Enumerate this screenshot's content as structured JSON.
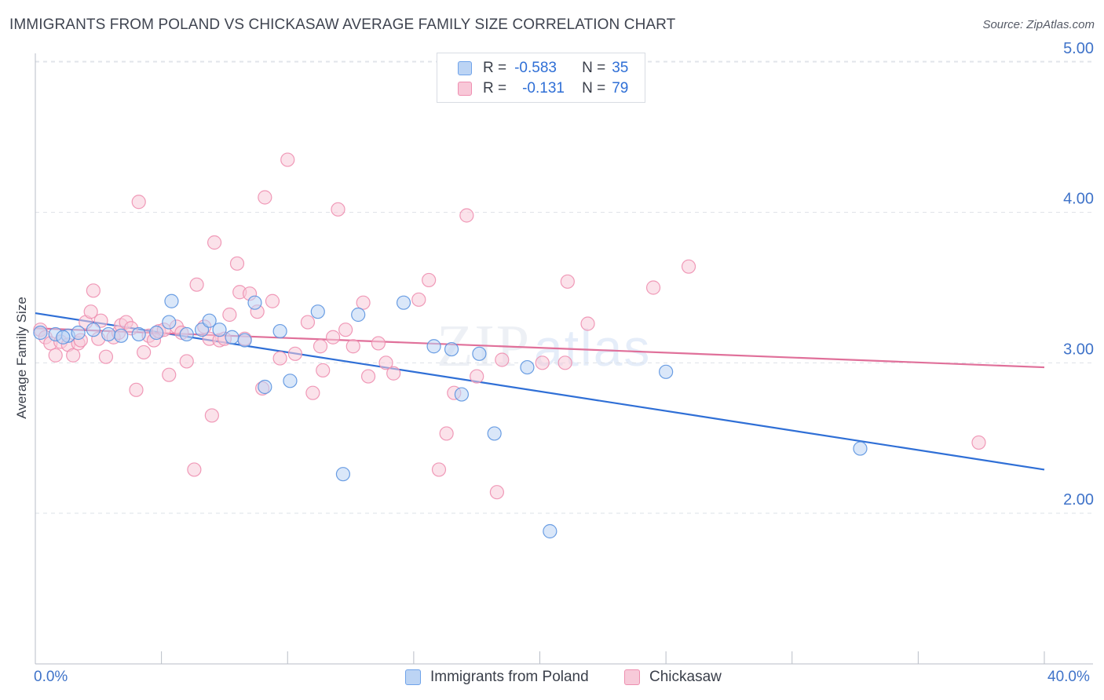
{
  "header": {
    "title": "IMMIGRANTS FROM POLAND VS CHICKASAW AVERAGE FAMILY SIZE CORRELATION CHART",
    "source": "Source: ZipAtlas.com"
  },
  "watermark": {
    "zip": "ZIP",
    "atlas": "atlas"
  },
  "legend": {
    "rows": [
      {
        "r_label": "R =",
        "r_value": "-0.583",
        "n_label": "N =",
        "n_value": "35",
        "color": "#6fa3ea",
        "fill": "#b9d2f5"
      },
      {
        "r_label": "R =",
        "r_value": "-0.131",
        "n_label": "N =",
        "n_value": "79",
        "color": "#ef8fb1",
        "fill": "#f8c8d8"
      }
    ]
  },
  "chart_data": {
    "type": "scatter",
    "ylabel": "Average Family Size",
    "xlim": [
      0,
      40
    ],
    "ylim": [
      1.0,
      5.15
    ],
    "x_tick_labels": [
      "0.0%",
      "40.0%"
    ],
    "y_ticks": [
      {
        "value": 2.0,
        "label": "2.00"
      },
      {
        "value": 3.0,
        "label": "3.00"
      },
      {
        "value": 4.0,
        "label": "4.00"
      },
      {
        "value": 5.0,
        "label": "5.00"
      }
    ],
    "grid": true,
    "series": [
      {
        "name": "Immigrants from Poland",
        "color": "#5b93e0",
        "fill": "#bcd4f4",
        "trend": {
          "x": [
            0,
            40
          ],
          "y": [
            3.33,
            2.29
          ],
          "color": "#2f6fd6"
        },
        "points": [
          [
            0.2,
            3.2
          ],
          [
            0.8,
            3.19
          ],
          [
            1.3,
            3.18
          ],
          [
            1.7,
            3.2
          ],
          [
            2.3,
            3.22
          ],
          [
            2.9,
            3.19
          ],
          [
            3.4,
            3.18
          ],
          [
            4.1,
            3.19
          ],
          [
            4.8,
            3.2
          ],
          [
            5.3,
            3.27
          ],
          [
            5.4,
            3.41
          ],
          [
            6.0,
            3.19
          ],
          [
            6.6,
            3.22
          ],
          [
            6.9,
            3.28
          ],
          [
            7.3,
            3.22
          ],
          [
            7.8,
            3.17
          ],
          [
            8.3,
            3.15
          ],
          [
            8.7,
            3.4
          ],
          [
            9.1,
            2.84
          ],
          [
            9.7,
            3.21
          ],
          [
            10.1,
            2.88
          ],
          [
            11.2,
            3.34
          ],
          [
            12.2,
            2.26
          ],
          [
            12.8,
            3.32
          ],
          [
            14.6,
            3.4
          ],
          [
            15.8,
            3.11
          ],
          [
            16.5,
            3.09
          ],
          [
            16.9,
            2.79
          ],
          [
            17.6,
            3.06
          ],
          [
            18.2,
            2.53
          ],
          [
            19.5,
            2.97
          ],
          [
            20.4,
            1.88
          ],
          [
            25.0,
            2.94
          ],
          [
            32.7,
            2.43
          ],
          [
            1.1,
            3.17
          ]
        ]
      },
      {
        "name": "Chickasaw",
        "color": "#ee8fb0",
        "fill": "#f7cad9",
        "trend": {
          "x": [
            0,
            40
          ],
          "y": [
            3.23,
            2.97
          ],
          "color": "#e0709a"
        },
        "points": [
          [
            0.2,
            3.22
          ],
          [
            0.4,
            3.17
          ],
          [
            0.6,
            3.13
          ],
          [
            0.8,
            3.05
          ],
          [
            1.0,
            3.14
          ],
          [
            1.3,
            3.12
          ],
          [
            1.5,
            3.05
          ],
          [
            1.7,
            3.13
          ],
          [
            1.8,
            3.15
          ],
          [
            2.0,
            3.27
          ],
          [
            2.2,
            3.34
          ],
          [
            2.3,
            3.48
          ],
          [
            2.5,
            3.16
          ],
          [
            2.6,
            3.28
          ],
          [
            2.8,
            3.04
          ],
          [
            3.1,
            3.17
          ],
          [
            3.3,
            3.2
          ],
          [
            3.4,
            3.25
          ],
          [
            3.6,
            3.27
          ],
          [
            3.8,
            3.23
          ],
          [
            4.0,
            2.82
          ],
          [
            4.1,
            4.07
          ],
          [
            4.3,
            3.07
          ],
          [
            4.5,
            3.18
          ],
          [
            4.7,
            3.15
          ],
          [
            4.9,
            3.21
          ],
          [
            5.1,
            3.22
          ],
          [
            5.3,
            2.92
          ],
          [
            5.6,
            3.24
          ],
          [
            5.8,
            3.2
          ],
          [
            6.0,
            3.01
          ],
          [
            6.3,
            2.29
          ],
          [
            6.4,
            3.52
          ],
          [
            6.7,
            3.24
          ],
          [
            6.9,
            3.16
          ],
          [
            7.0,
            2.65
          ],
          [
            7.1,
            3.8
          ],
          [
            7.3,
            3.15
          ],
          [
            7.5,
            3.16
          ],
          [
            7.7,
            3.32
          ],
          [
            8.0,
            3.66
          ],
          [
            8.1,
            3.47
          ],
          [
            8.3,
            3.16
          ],
          [
            8.5,
            3.46
          ],
          [
            8.8,
            3.34
          ],
          [
            9.0,
            2.83
          ],
          [
            9.1,
            4.1
          ],
          [
            9.4,
            3.41
          ],
          [
            9.7,
            3.03
          ],
          [
            10.0,
            4.35
          ],
          [
            10.3,
            3.06
          ],
          [
            10.8,
            3.27
          ],
          [
            11.0,
            2.8
          ],
          [
            11.3,
            3.11
          ],
          [
            11.4,
            2.95
          ],
          [
            11.8,
            3.17
          ],
          [
            12.0,
            4.02
          ],
          [
            12.3,
            3.22
          ],
          [
            12.6,
            3.11
          ],
          [
            13.0,
            3.4
          ],
          [
            13.2,
            2.91
          ],
          [
            13.6,
            3.13
          ],
          [
            13.9,
            3.0
          ],
          [
            14.2,
            2.93
          ],
          [
            15.2,
            3.42
          ],
          [
            15.6,
            3.55
          ],
          [
            16.0,
            2.29
          ],
          [
            16.3,
            2.53
          ],
          [
            16.6,
            2.8
          ],
          [
            17.1,
            3.98
          ],
          [
            17.5,
            2.91
          ],
          [
            18.3,
            2.14
          ],
          [
            18.5,
            3.02
          ],
          [
            20.1,
            3.0
          ],
          [
            21.0,
            3.0
          ],
          [
            21.1,
            3.54
          ],
          [
            21.9,
            3.26
          ],
          [
            24.5,
            3.5
          ],
          [
            25.9,
            3.64
          ],
          [
            37.4,
            2.47
          ]
        ]
      }
    ]
  }
}
